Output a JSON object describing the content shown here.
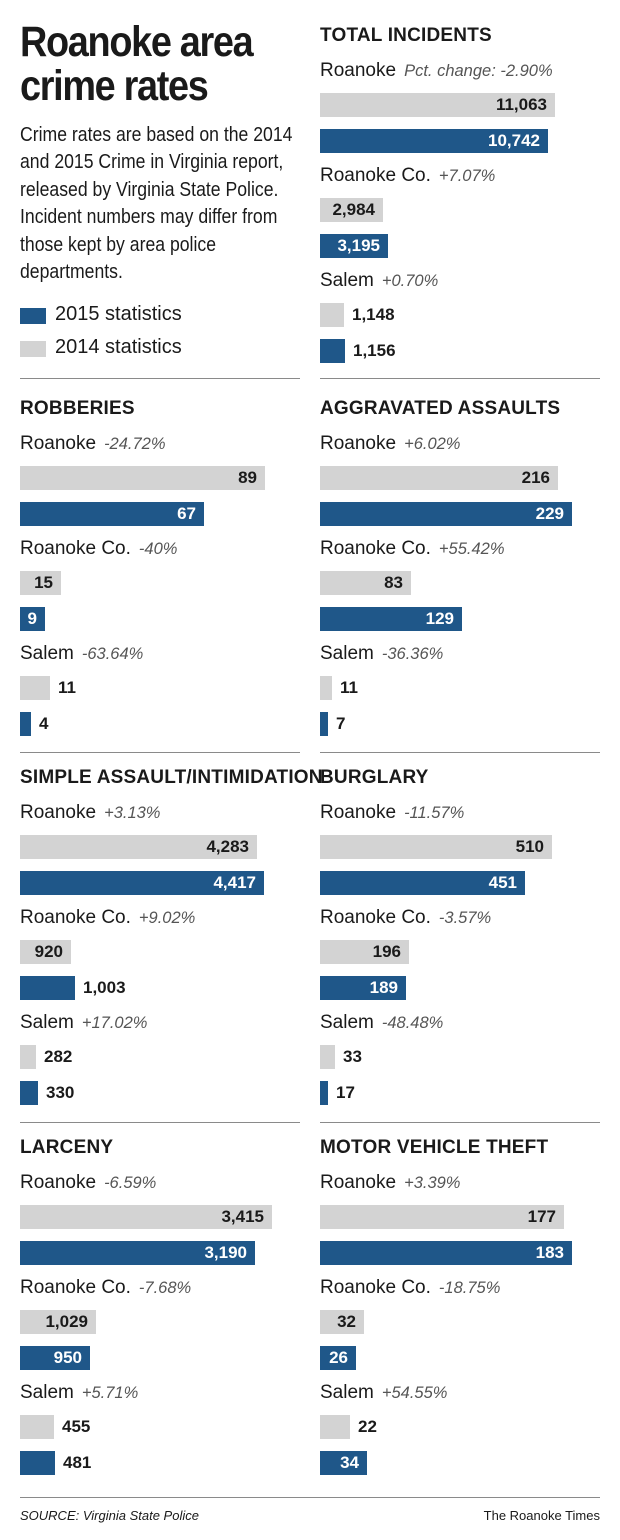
{
  "header": {
    "title": "Roanoke area crime rates",
    "description": "Crime rates are based on the 2014 and 2015 Crime in Virginia report, released by Virginia State Police. Incident numbers may differ from those kept by area police departments."
  },
  "legend": {
    "items": [
      {
        "label": "2015 statistics",
        "color": "#1f5789"
      },
      {
        "label": "2014 statistics",
        "color": "#d3d3d3"
      }
    ]
  },
  "footer": {
    "source": "SOURCE: Virginia State Police",
    "credit": "The Roanoke Times"
  },
  "colors": {
    "y2014": "#d3d3d3",
    "y2015": "#1f5789"
  },
  "chart_data": [
    {
      "type": "bar",
      "title": "TOTAL INCIDENTS",
      "scale_max": 12000,
      "groups": [
        {
          "name": "Roanoke",
          "pct": "Pct. change: -2.90%",
          "values": {
            "2014": 11063,
            "2015": 10742
          },
          "labels": {
            "2014": "11,063",
            "2015": "10,742"
          }
        },
        {
          "name": "Roanoke Co.",
          "pct": "+7.07%",
          "values": {
            "2014": 2984,
            "2015": 3195
          },
          "labels": {
            "2014": "2,984",
            "2015": "3,195"
          }
        },
        {
          "name": "Salem",
          "pct": "+0.70%",
          "values": {
            "2014": 1148,
            "2015": 1156
          },
          "labels": {
            "2014": "1,148",
            "2015": "1,156"
          }
        }
      ]
    },
    {
      "type": "bar",
      "title": "ROBBERIES",
      "scale_max": 89,
      "groups": [
        {
          "name": "Roanoke",
          "pct": "-24.72%",
          "values": {
            "2014": 89,
            "2015": 67
          },
          "labels": {
            "2014": "89",
            "2015": "67"
          }
        },
        {
          "name": "Roanoke Co.",
          "pct": "-40%",
          "values": {
            "2014": 15,
            "2015": 9
          },
          "labels": {
            "2014": "15",
            "2015": "9"
          }
        },
        {
          "name": "Salem",
          "pct": "-63.64%",
          "values": {
            "2014": 11,
            "2015": 4
          },
          "labels": {
            "2014": "11",
            "2015": "4"
          }
        }
      ]
    },
    {
      "type": "bar",
      "title": "AGGRAVATED ASSAULTS",
      "scale_max": 229,
      "groups": [
        {
          "name": "Roanoke",
          "pct": "+6.02%",
          "values": {
            "2014": 216,
            "2015": 229
          },
          "labels": {
            "2014": "216",
            "2015": "229"
          }
        },
        {
          "name": "Roanoke Co.",
          "pct": "+55.42%",
          "values": {
            "2014": 83,
            "2015": 129
          },
          "labels": {
            "2014": "83",
            "2015": "129"
          }
        },
        {
          "name": "Salem",
          "pct": "-36.36%",
          "values": {
            "2014": 11,
            "2015": 7
          },
          "labels": {
            "2014": "11",
            "2015": "7"
          }
        }
      ]
    },
    {
      "type": "bar",
      "title": "SIMPLE ASSAULT/INTIMIDATION",
      "scale_max": 4417,
      "groups": [
        {
          "name": "Roanoke",
          "pct": "+3.13%",
          "values": {
            "2014": 4283,
            "2015": 4417
          },
          "labels": {
            "2014": "4,283",
            "2015": "4,417"
          }
        },
        {
          "name": "Roanoke Co.",
          "pct": "+9.02%",
          "values": {
            "2014": 920,
            "2015": 1003
          },
          "labels": {
            "2014": "920",
            "2015": "1,003"
          }
        },
        {
          "name": "Salem",
          "pct": "+17.02%",
          "values": {
            "2014": 282,
            "2015": 330
          },
          "labels": {
            "2014": "282",
            "2015": "330"
          }
        }
      ]
    },
    {
      "type": "bar",
      "title": "BURGLARY",
      "scale_max": 536,
      "groups": [
        {
          "name": "Roanoke",
          "pct": "-11.57%",
          "values": {
            "2014": 510,
            "2015": 451
          },
          "labels": {
            "2014": "510",
            "2015": "451"
          }
        },
        {
          "name": "Roanoke Co.",
          "pct": "-3.57%",
          "values": {
            "2014": 196,
            "2015": 189
          },
          "labels": {
            "2014": "196",
            "2015": "189"
          }
        },
        {
          "name": "Salem",
          "pct": "-48.48%",
          "values": {
            "2014": 33,
            "2015": 17
          },
          "labels": {
            "2014": "33",
            "2015": "17"
          }
        }
      ]
    },
    {
      "type": "bar",
      "title": "LARCENY",
      "scale_max": 3415,
      "groups": [
        {
          "name": "Roanoke",
          "pct": "-6.59%",
          "values": {
            "2014": 3415,
            "2015": 3190
          },
          "labels": {
            "2014": "3,415",
            "2015": "3,190"
          }
        },
        {
          "name": "Roanoke Co.",
          "pct": "-7.68%",
          "values": {
            "2014": 1029,
            "2015": 950
          },
          "labels": {
            "2014": "1,029",
            "2015": "950"
          }
        },
        {
          "name": "Salem",
          "pct": "+5.71%",
          "values": {
            "2014": 455,
            "2015": 481
          },
          "labels": {
            "2014": "455",
            "2015": "481"
          }
        }
      ]
    },
    {
      "type": "bar",
      "title": "MOTOR VEHICLE THEFT",
      "scale_max": 183,
      "groups": [
        {
          "name": "Roanoke",
          "pct": "+3.39%",
          "values": {
            "2014": 177,
            "2015": 183
          },
          "labels": {
            "2014": "177",
            "2015": "183"
          }
        },
        {
          "name": "Roanoke Co.",
          "pct": "-18.75%",
          "values": {
            "2014": 32,
            "2015": 26
          },
          "labels": {
            "2014": "32",
            "2015": "26"
          }
        },
        {
          "name": "Salem",
          "pct": "+54.55%",
          "values": {
            "2014": 22,
            "2015": 34
          },
          "labels": {
            "2014": "22",
            "2015": "34"
          }
        }
      ]
    }
  ]
}
